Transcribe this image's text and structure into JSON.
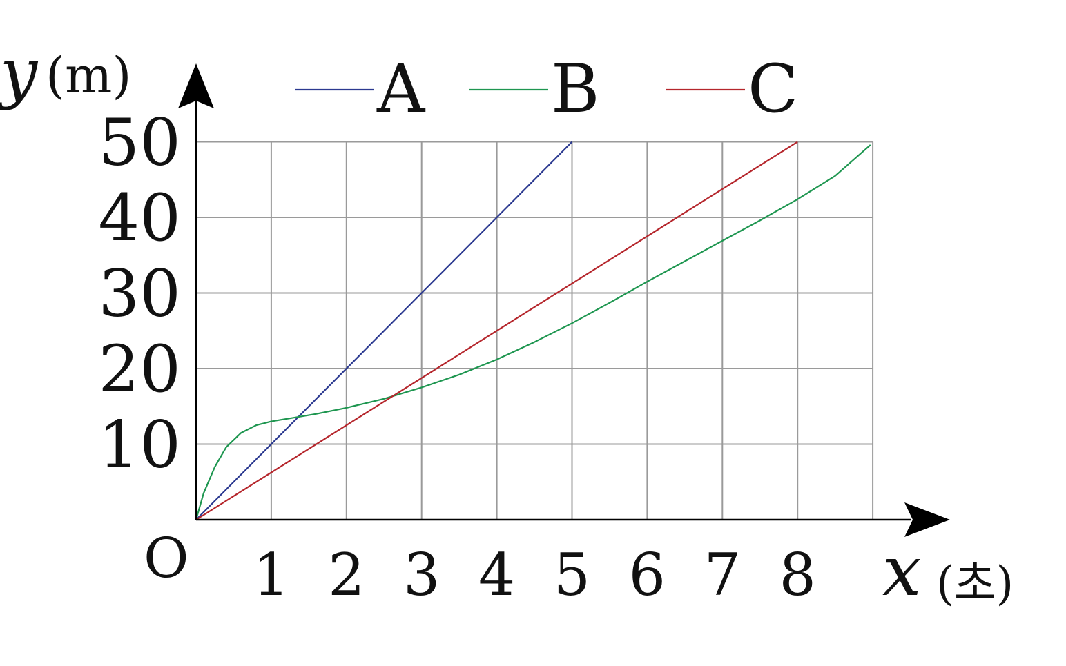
{
  "chart_data": {
    "type": "line",
    "title": "",
    "ylabel_var": "y",
    "ylabel_unit": "(m)",
    "xlabel_var": "x",
    "xlabel_unit": "(초)",
    "origin_label": "O",
    "xlim": [
      0,
      9
    ],
    "ylim": [
      0,
      50
    ],
    "xticks": [
      1,
      2,
      3,
      4,
      5,
      6,
      7,
      8
    ],
    "yticks": [
      10,
      20,
      30,
      40,
      50
    ],
    "grid": true,
    "legend_position": "top",
    "series": [
      {
        "name": "A",
        "color": "#2b3990",
        "x": [
          0,
          1,
          2,
          3,
          4,
          5
        ],
        "y": [
          0,
          10,
          20,
          30,
          40,
          50
        ]
      },
      {
        "name": "B",
        "color": "#1e9650",
        "x": [
          0,
          0.1,
          0.25,
          0.4,
          0.6,
          0.8,
          1.0,
          1.3,
          1.6,
          2.0,
          2.5,
          3.0,
          3.5,
          4.0,
          4.5,
          5.0,
          5.5,
          6.0,
          6.5,
          7.0,
          7.5,
          8.0,
          8.5,
          8.97
        ],
        "y": [
          0,
          3.5,
          7.0,
          9.6,
          11.5,
          12.5,
          13.0,
          13.5,
          14.0,
          14.8,
          16.0,
          17.5,
          19.2,
          21.2,
          23.5,
          26.0,
          28.7,
          31.5,
          34.2,
          36.9,
          39.6,
          42.4,
          45.5,
          49.6
        ]
      },
      {
        "name": "C",
        "color": "#b5262c",
        "x": [
          0,
          8
        ],
        "y": [
          0,
          50
        ]
      }
    ]
  }
}
